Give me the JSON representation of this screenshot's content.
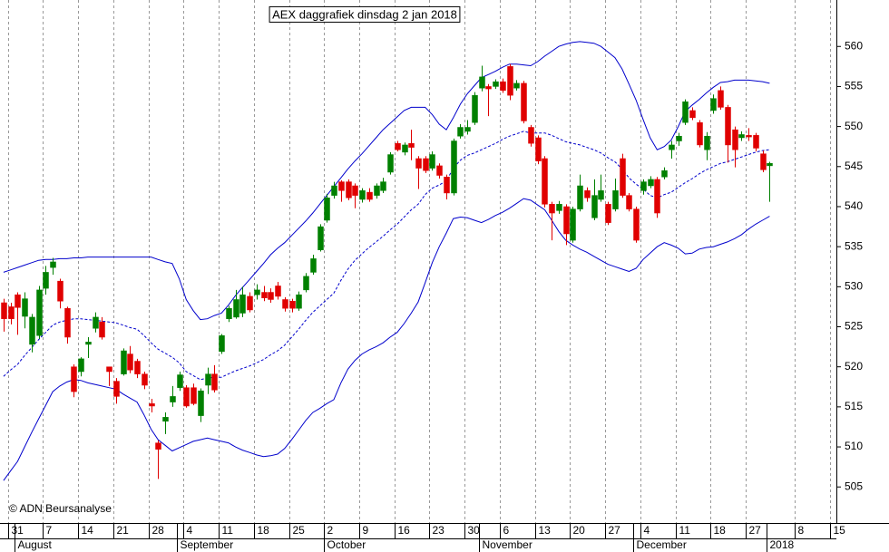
{
  "chart_data": {
    "type": "candlestick",
    "title": "AEX daggrafiek dinsdag 2 jan 2018",
    "credit": "© ADN Beursanalyse",
    "categories": [
      null,
      "31",
      null,
      null,
      null,
      null,
      "7",
      null,
      null,
      null,
      null,
      "14",
      null,
      null,
      null,
      null,
      "21",
      null,
      null,
      null,
      null,
      "28",
      null,
      null,
      null,
      null,
      "4",
      null,
      null,
      null,
      null,
      "11",
      null,
      null,
      null,
      null,
      "18",
      null,
      null,
      null,
      null,
      "25",
      null,
      null,
      null,
      null,
      "2",
      null,
      null,
      null,
      null,
      "9",
      null,
      null,
      null,
      null,
      "16",
      null,
      null,
      null,
      null,
      "23",
      null,
      null,
      null,
      null,
      "30",
      null,
      null,
      null,
      null,
      "6",
      null,
      null,
      null,
      null,
      "13",
      null,
      null,
      null,
      null,
      "20",
      null,
      null,
      null,
      null,
      "27",
      null,
      null,
      null,
      null,
      "4",
      null,
      null,
      null,
      null,
      "11",
      null,
      null,
      null,
      null,
      "18",
      null,
      null,
      null,
      null,
      "27",
      null,
      null,
      null,
      null,
      null,
      null,
      "8",
      null,
      null,
      null,
      null,
      "15"
    ],
    "months": [
      {
        "label": "August",
        "start": 2
      },
      {
        "label": "September",
        "start": 25
      },
      {
        "label": "October",
        "start": 46
      },
      {
        "label": "November",
        "start": 68
      },
      {
        "label": "December",
        "start": 90
      },
      {
        "label": "2018",
        "start": 109
      }
    ],
    "open": [
      528.0,
      527.5,
      529.0,
      526.3,
      522.8,
      523.9,
      529.8,
      532.4,
      530.7,
      527.3,
      520.0,
      519.4,
      522.8,
      524.8,
      525.6,
      520.0,
      518.2,
      519.1,
      521.6,
      520.7,
      519.1,
      515.4,
      510.5,
      513.2,
      515.6,
      517.4,
      517.4,
      517.4,
      513.9,
      517.7,
      519.1,
      521.9,
      526.0,
      526.2,
      526.7,
      528.8,
      529.0,
      529.3,
      529.3,
      530.1,
      528.4,
      528.2,
      527.3,
      529.6,
      531.8,
      534.6,
      538.3,
      541.4,
      543.1,
      543.1,
      542.6,
      540.9,
      541.8,
      541.4,
      542.0,
      544.3,
      547.9,
      546.8,
      547.9,
      546.0,
      546.0,
      544.8,
      545.1,
      543.7,
      541.7,
      548.8,
      549.4,
      550.5,
      554.8,
      555.0,
      555.0,
      555.6,
      557.5,
      554.8,
      555.4,
      549.9,
      548.6,
      546.0,
      540.3,
      539.5,
      540.0,
      535.8,
      539.7,
      542.0,
      538.6,
      540.9,
      540.3,
      539.7,
      546.0,
      541.4,
      539.7,
      542.0,
      542.6,
      543.4,
      543.7,
      547.1,
      548.2,
      550.5,
      552.0,
      550.5,
      547.1,
      552.0,
      554.5,
      552.4,
      549.6,
      548.6,
      548.9,
      548.9,
      546.6,
      545.1,
      null,
      null,
      null,
      null,
      null,
      null,
      null,
      null,
      null
    ],
    "high": [
      528.5,
      528.0,
      529.3,
      529.3,
      526.6,
      530.1,
      532.6,
      533.6,
      531.0,
      527.5,
      520.3,
      521.2,
      523.7,
      526.8,
      526.2,
      520.0,
      518.6,
      522.3,
      522.6,
      521.0,
      519.4,
      516.0,
      510.8,
      514.3,
      517.6,
      519.4,
      517.7,
      517.9,
      517.3,
      519.9,
      520.2,
      524.1,
      527.6,
      529.6,
      530.0,
      529.3,
      530.3,
      530.1,
      529.8,
      530.6,
      528.7,
      528.5,
      529.4,
      531.7,
      534.0,
      537.8,
      541.6,
      543.1,
      543.3,
      543.4,
      542.9,
      542.3,
      542.3,
      542.9,
      543.6,
      546.8,
      548.2,
      548.0,
      549.6,
      546.3,
      546.3,
      546.9,
      545.4,
      544.0,
      548.5,
      550.3,
      550.8,
      554.3,
      557.6,
      555.3,
      555.9,
      556.0,
      557.8,
      555.8,
      555.7,
      550.2,
      548.9,
      546.3,
      540.6,
      540.7,
      540.3,
      540.0,
      544.0,
      542.4,
      543.4,
      544.0,
      540.6,
      543.5,
      546.6,
      541.7,
      540.0,
      543.4,
      543.8,
      543.7,
      544.9,
      548.2,
      549.2,
      553.4,
      552.4,
      550.8,
      549.3,
      554.0,
      555.0,
      552.7,
      550.0,
      549.4,
      549.8,
      549.2,
      547.0,
      545.6,
      null,
      null,
      null,
      null,
      null,
      null,
      null,
      null,
      null
    ],
    "low": [
      524.4,
      525.3,
      524.0,
      524.8,
      521.8,
      523.5,
      529.0,
      531.5,
      527.3,
      522.9,
      516.2,
      518.8,
      521.1,
      524.3,
      523.4,
      517.6,
      515.4,
      518.9,
      519.2,
      518.6,
      517.2,
      514.3,
      506.0,
      511.6,
      515.0,
      517.0,
      514.9,
      515.2,
      513.1,
      516.6,
      516.8,
      521.6,
      525.6,
      526.0,
      526.2,
      526.8,
      528.4,
      528.2,
      528.0,
      528.4,
      526.9,
      526.8,
      527.0,
      529.3,
      531.5,
      534.4,
      538.0,
      541.0,
      540.6,
      540.8,
      539.8,
      540.5,
      540.6,
      541.0,
      541.7,
      544.0,
      546.9,
      546.4,
      545.8,
      542.2,
      544.2,
      544.5,
      543.5,
      540.9,
      541.4,
      548.5,
      549.0,
      550.2,
      554.4,
      551.3,
      554.7,
      554.2,
      553.3,
      554.5,
      550.4,
      547.5,
      545.3,
      539.9,
      535.8,
      539.1,
      535.2,
      535.5,
      539.4,
      540.6,
      538.3,
      540.6,
      537.7,
      539.4,
      541.1,
      539.4,
      535.5,
      541.5,
      542.3,
      538.6,
      543.4,
      546.0,
      547.6,
      550.2,
      550.8,
      547.4,
      545.8,
      551.6,
      552.1,
      545.5,
      544.9,
      548.2,
      548.2,
      546.9,
      544.3,
      540.6,
      null,
      null,
      null,
      null,
      null,
      null,
      null,
      null,
      null
    ],
    "close": [
      526.0,
      526.0,
      527.4,
      528.5,
      526.2,
      529.6,
      531.8,
      533.1,
      528.2,
      523.7,
      516.9,
      521.0,
      523.1,
      526.2,
      523.7,
      519.4,
      516.3,
      522.0,
      519.6,
      519.1,
      517.7,
      515.1,
      509.7,
      513.7,
      516.3,
      519.0,
      515.1,
      515.4,
      517.0,
      519.1,
      517.1,
      523.9,
      527.3,
      528.4,
      529.0,
      527.1,
      529.6,
      528.6,
      528.4,
      528.8,
      527.3,
      527.3,
      529.0,
      531.3,
      533.5,
      537.5,
      541.1,
      542.6,
      542.0,
      541.1,
      541.4,
      542.0,
      540.9,
      542.6,
      543.1,
      546.5,
      547.1,
      547.7,
      547.4,
      544.8,
      544.5,
      546.5,
      543.9,
      541.7,
      548.2,
      549.9,
      549.9,
      553.9,
      556.2,
      554.7,
      555.6,
      554.5,
      553.9,
      555.4,
      550.7,
      547.9,
      545.7,
      540.3,
      539.2,
      540.3,
      536.6,
      539.7,
      542.6,
      541.1,
      541.4,
      542.0,
      538.0,
      542.0,
      541.4,
      539.7,
      535.8,
      543.1,
      543.4,
      539.2,
      544.5,
      547.7,
      548.8,
      553.1,
      551.1,
      547.7,
      548.8,
      553.5,
      552.4,
      547.7,
      547.1,
      549.0,
      548.7,
      547.3,
      544.6,
      545.4,
      null,
      null,
      null,
      null,
      null,
      null,
      null,
      null,
      null
    ],
    "up_color": "#008000",
    "down_color": "#e00000",
    "bands": {
      "color": "#0000cc",
      "upper": [
        531.8,
        532.1,
        532.4,
        532.7,
        533.0,
        533.3,
        533.4,
        533.4,
        533.5,
        533.5,
        533.6,
        533.6,
        533.7,
        533.7,
        533.7,
        533.7,
        533.7,
        533.7,
        533.7,
        533.7,
        533.7,
        533.7,
        533.4,
        533.1,
        532.9,
        531.0,
        528.4,
        527.0,
        525.9,
        526.0,
        526.4,
        526.7,
        527.7,
        528.9,
        529.9,
        530.9,
        531.9,
        532.9,
        534.0,
        534.8,
        535.5,
        536.4,
        537.3,
        538.2,
        539.2,
        540.3,
        541.4,
        542.5,
        543.6,
        544.7,
        545.7,
        546.6,
        547.6,
        548.6,
        549.6,
        550.4,
        551.2,
        552.0,
        552.4,
        552.4,
        552.4,
        551.5,
        550.3,
        549.6,
        551.1,
        552.8,
        554.1,
        555.1,
        556.1,
        556.5,
        556.9,
        557.4,
        557.8,
        557.8,
        557.7,
        557.6,
        558.1,
        558.8,
        559.4,
        560.0,
        560.3,
        560.5,
        560.6,
        560.5,
        560.4,
        560.0,
        559.3,
        558.6,
        557.2,
        555.3,
        553.3,
        550.9,
        548.6,
        547.1,
        547.5,
        548.3,
        550.0,
        551.9,
        552.7,
        553.4,
        554.2,
        554.9,
        555.5,
        555.6,
        555.8,
        555.8,
        555.8,
        555.7,
        555.6,
        555.4,
        null,
        null,
        null,
        null,
        null,
        null,
        null,
        null,
        null
      ],
      "middle": [
        518.8,
        519.6,
        520.3,
        521.4,
        522.4,
        523.4,
        524.3,
        525.2,
        525.6,
        525.8,
        526.0,
        526.0,
        525.9,
        525.8,
        525.7,
        525.6,
        525.5,
        525.2,
        524.9,
        524.7,
        523.9,
        523.0,
        522.2,
        521.7,
        521.2,
        520.5,
        519.4,
        518.9,
        518.4,
        518.6,
        518.7,
        518.7,
        519.1,
        519.5,
        519.8,
        520.1,
        520.5,
        520.9,
        521.5,
        522.0,
        522.7,
        523.7,
        524.7,
        525.8,
        526.8,
        527.6,
        528.4,
        529.2,
        530.8,
        532.2,
        533.3,
        534.1,
        534.9,
        535.6,
        536.3,
        537.1,
        537.8,
        538.7,
        539.6,
        540.3,
        541.5,
        542.3,
        542.7,
        543.2,
        544.8,
        545.8,
        546.4,
        546.7,
        547.1,
        547.5,
        547.9,
        548.4,
        548.8,
        549.1,
        549.4,
        549.2,
        549.2,
        549.2,
        548.9,
        548.5,
        548.1,
        547.9,
        547.7,
        547.4,
        547.1,
        546.7,
        546.1,
        545.6,
        544.7,
        543.6,
        542.8,
        542.2,
        541.4,
        541.1,
        541.5,
        541.8,
        542.4,
        543.0,
        543.5,
        544.1,
        544.6,
        545.0,
        545.4,
        545.6,
        545.9,
        546.2,
        546.5,
        546.8,
        547.0,
        547.1,
        null,
        null,
        null,
        null,
        null,
        null,
        null,
        null,
        null
      ],
      "lower": [
        505.8,
        507.0,
        508.2,
        510.0,
        511.8,
        513.5,
        515.2,
        516.9,
        517.6,
        518.1,
        518.4,
        518.3,
        518.0,
        517.8,
        517.6,
        517.4,
        517.2,
        516.6,
        516.1,
        515.6,
        514.0,
        512.2,
        510.9,
        510.2,
        509.5,
        509.9,
        510.3,
        510.7,
        510.9,
        511.1,
        510.9,
        510.7,
        510.5,
        510.0,
        509.6,
        509.3,
        509.0,
        508.8,
        508.9,
        509.1,
        509.8,
        510.9,
        512.1,
        513.3,
        514.3,
        514.8,
        515.4,
        515.9,
        518.0,
        519.7,
        520.8,
        521.6,
        522.1,
        522.5,
        523.0,
        523.7,
        524.3,
        525.4,
        526.7,
        528.1,
        530.5,
        533.0,
        535.0,
        536.7,
        538.5,
        538.7,
        538.6,
        538.3,
        538.0,
        538.4,
        538.9,
        539.3,
        539.8,
        540.4,
        541.0,
        540.8,
        540.2,
        539.6,
        538.3,
        536.9,
        535.8,
        535.2,
        534.7,
        534.3,
        533.8,
        533.3,
        532.8,
        532.5,
        532.2,
        531.9,
        532.3,
        533.4,
        534.2,
        535.0,
        535.5,
        535.2,
        534.8,
        534.1,
        534.2,
        534.7,
        534.9,
        535.0,
        535.3,
        535.6,
        536.0,
        536.5,
        537.2,
        537.8,
        538.3,
        538.8,
        null,
        null,
        null,
        null,
        null,
        null,
        null,
        null,
        null
      ]
    },
    "ylim": [
      500.5,
      565.8
    ],
    "yticks": [
      505,
      510,
      515,
      520,
      525,
      530,
      535,
      540,
      545,
      550,
      555,
      560
    ],
    "grid": "x"
  }
}
